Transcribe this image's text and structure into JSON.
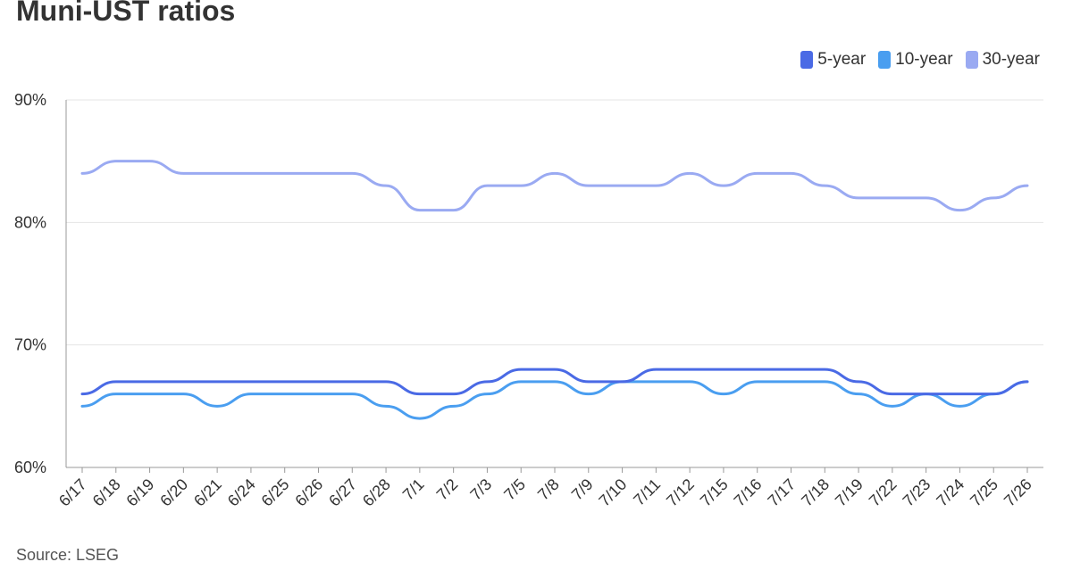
{
  "header": {
    "title": "Muni-UST ratios"
  },
  "footer": {
    "source": "Source: LSEG"
  },
  "colors": {
    "five_year": "#4a6ae5",
    "ten_year": "#4a9ef0",
    "thirty_year": "#9aaaf2",
    "grid": "#e5e5e5",
    "axis": "#999999"
  },
  "chart_data": {
    "type": "line",
    "title": "Muni-UST ratios",
    "xlabel": "",
    "ylabel": "",
    "ylim": [
      60,
      90
    ],
    "yticks": [
      "60%",
      "70%",
      "80%",
      "90%"
    ],
    "grid": true,
    "legend_position": "top-right",
    "categories": [
      "6/17",
      "6/18",
      "6/19",
      "6/20",
      "6/21",
      "6/24",
      "6/25",
      "6/26",
      "6/27",
      "6/28",
      "7/1",
      "7/2",
      "7/3",
      "7/5",
      "7/8",
      "7/9",
      "7/10",
      "7/11",
      "7/12",
      "7/15",
      "7/16",
      "7/17",
      "7/18",
      "7/19",
      "7/22",
      "7/23",
      "7/24",
      "7/25",
      "7/26"
    ],
    "series": [
      {
        "name": "5-year",
        "color": "#4a6ae5",
        "values": [
          66,
          67,
          67,
          67,
          67,
          67,
          67,
          67,
          67,
          67,
          66,
          66,
          67,
          68,
          68,
          67,
          67,
          68,
          68,
          68,
          68,
          68,
          68,
          67,
          66,
          66,
          66,
          66,
          67
        ]
      },
      {
        "name": "10-year",
        "color": "#4a9ef0",
        "values": [
          65,
          66,
          66,
          66,
          65,
          66,
          66,
          66,
          66,
          65,
          64,
          65,
          66,
          67,
          67,
          66,
          67,
          67,
          67,
          66,
          67,
          67,
          67,
          66,
          65,
          66,
          65,
          66,
          67
        ]
      },
      {
        "name": "30-year",
        "color": "#9aaaf2",
        "values": [
          84,
          85,
          85,
          84,
          84,
          84,
          84,
          84,
          84,
          83,
          81,
          81,
          83,
          83,
          84,
          83,
          83,
          83,
          84,
          83,
          84,
          84,
          83,
          82,
          82,
          82,
          81,
          82,
          83
        ]
      }
    ]
  }
}
